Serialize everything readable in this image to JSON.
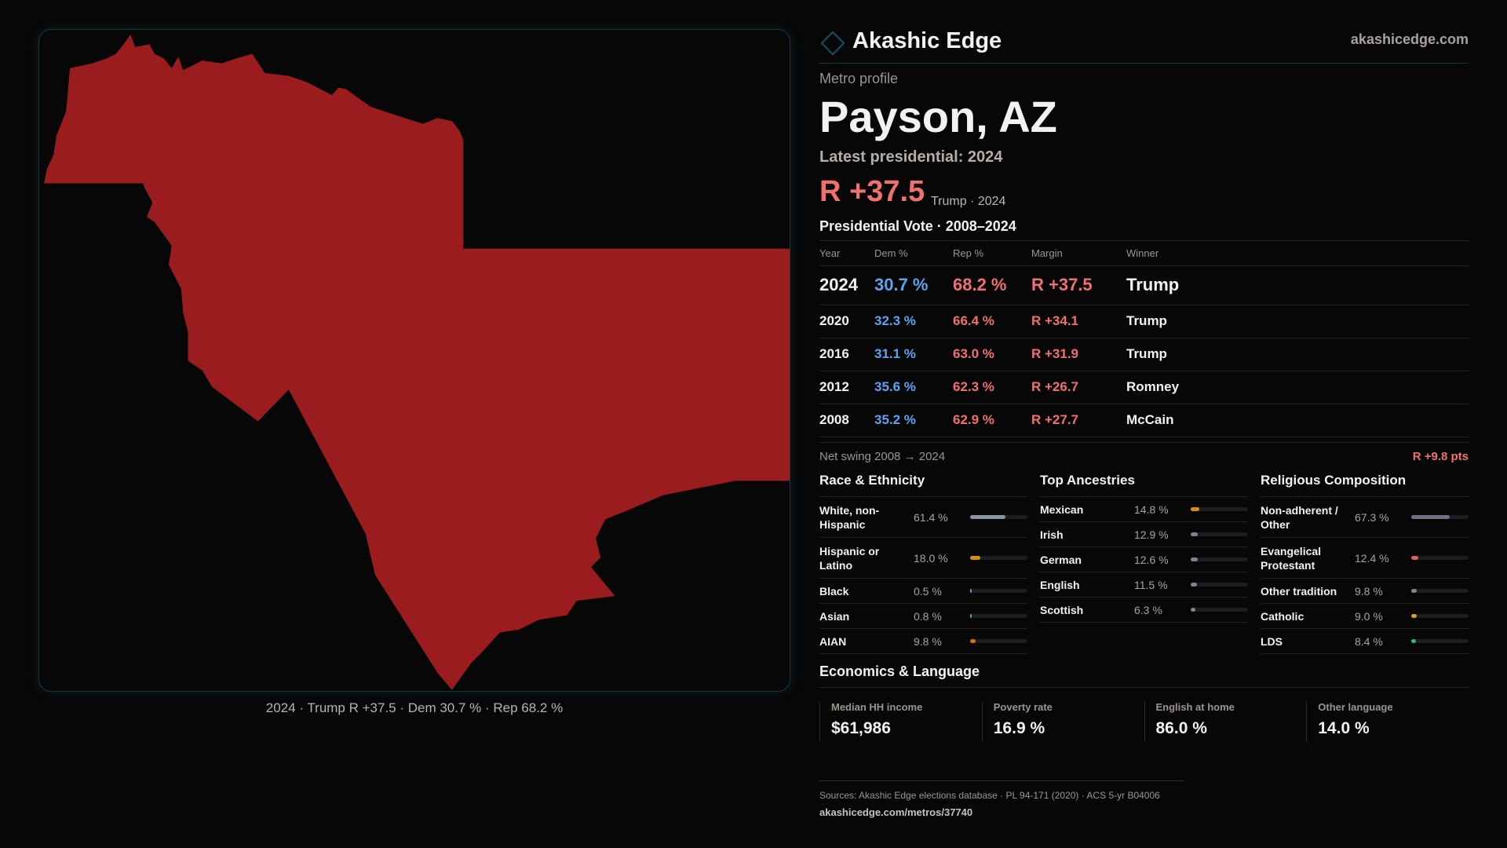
{
  "brand": {
    "name": "Akashic Edge",
    "site": "akashicedge.com"
  },
  "map": {
    "caption": "2024 · Trump R +37.5 · Dem 30.7 % · Rep 68.2 %",
    "fill": "#9b1c1f"
  },
  "profile": {
    "eyebrow": "Metro profile",
    "title": "Payson, AZ",
    "latest": "Latest presidential: 2024",
    "margin": "R +37.5",
    "margin_sub": "Trump · 2024"
  },
  "votes": {
    "heading": "Presidential Vote · 2008–2024",
    "columns": [
      "Year",
      "Dem %",
      "Rep %",
      "Margin",
      "Winner"
    ],
    "rows": [
      {
        "year": "2024",
        "dem": "30.7 %",
        "rep": "68.2 %",
        "margin": "R +37.5",
        "winner": "Trump"
      },
      {
        "year": "2020",
        "dem": "32.3 %",
        "rep": "66.4 %",
        "margin": "R +34.1",
        "winner": "Trump"
      },
      {
        "year": "2016",
        "dem": "31.1 %",
        "rep": "63.0 %",
        "margin": "R +31.9",
        "winner": "Trump"
      },
      {
        "year": "2012",
        "dem": "35.6 %",
        "rep": "62.3 %",
        "margin": "R +26.7",
        "winner": "Romney"
      },
      {
        "year": "2008",
        "dem": "35.2 %",
        "rep": "62.9 %",
        "margin": "R +27.7",
        "winner": "McCain"
      }
    ],
    "swing_label": "Net swing 2008 → 2024",
    "swing_value": "R +9.8 pts"
  },
  "race": {
    "heading": "Race & Ethnicity",
    "items": [
      {
        "label": "White, non-Hispanic",
        "value": "61.4 %",
        "pct": 61.4,
        "color": "#8a94a6"
      },
      {
        "label": "Hispanic or Latino",
        "value": "18.0 %",
        "pct": 18.0,
        "color": "#d4900a"
      },
      {
        "label": "Black",
        "value": "0.5 %",
        "pct": 0.5,
        "color": "#8b7fd4"
      },
      {
        "label": "Asian",
        "value": "0.8 %",
        "pct": 0.8,
        "color": "#2bb5a0"
      },
      {
        "label": "AIAN",
        "value": "9.8 %",
        "pct": 9.8,
        "color": "#d07010"
      }
    ]
  },
  "ancestry": {
    "heading": "Top Ancestries",
    "items": [
      {
        "label": "Mexican",
        "value": "14.8 %",
        "pct": 14.8,
        "color": "#d4900a"
      },
      {
        "label": "Irish",
        "value": "12.9 %",
        "pct": 12.9,
        "color": "#7c8494"
      },
      {
        "label": "German",
        "value": "12.6 %",
        "pct": 12.6,
        "color": "#7c8494"
      },
      {
        "label": "English",
        "value": "11.5 %",
        "pct": 11.5,
        "color": "#7c8494"
      },
      {
        "label": "Scottish",
        "value": "6.3 %",
        "pct": 6.3,
        "color": "#7c8494"
      }
    ]
  },
  "religion": {
    "heading": "Religious Composition",
    "items": [
      {
        "label": "Non-adherent / Other",
        "value": "67.3 %",
        "pct": 67.3,
        "color": "#6a7080"
      },
      {
        "label": "Evangelical Protestant",
        "value": "12.4 %",
        "pct": 12.4,
        "color": "#e05a5a"
      },
      {
        "label": "Other tradition",
        "value": "9.8 %",
        "pct": 9.8,
        "color": "#7c8494"
      },
      {
        "label": "Catholic",
        "value": "9.0 %",
        "pct": 9.0,
        "color": "#d4a017"
      },
      {
        "label": "LDS",
        "value": "8.4 %",
        "pct": 8.4,
        "color": "#20b8a0"
      }
    ]
  },
  "economics": {
    "heading": "Economics & Language",
    "cards": [
      {
        "label": "Median HH income",
        "value": "$61,986"
      },
      {
        "label": "Poverty rate",
        "value": "16.9 %"
      },
      {
        "label": "English at home",
        "value": "86.0 %"
      },
      {
        "label": "Other language",
        "value": "14.0 %"
      }
    ]
  },
  "footer": {
    "sources": "Sources: Akashic Edge elections database · PL 94-171 (2020) · ACS 5-yr B04006",
    "url": "akashicedge.com/metros/37740"
  }
}
